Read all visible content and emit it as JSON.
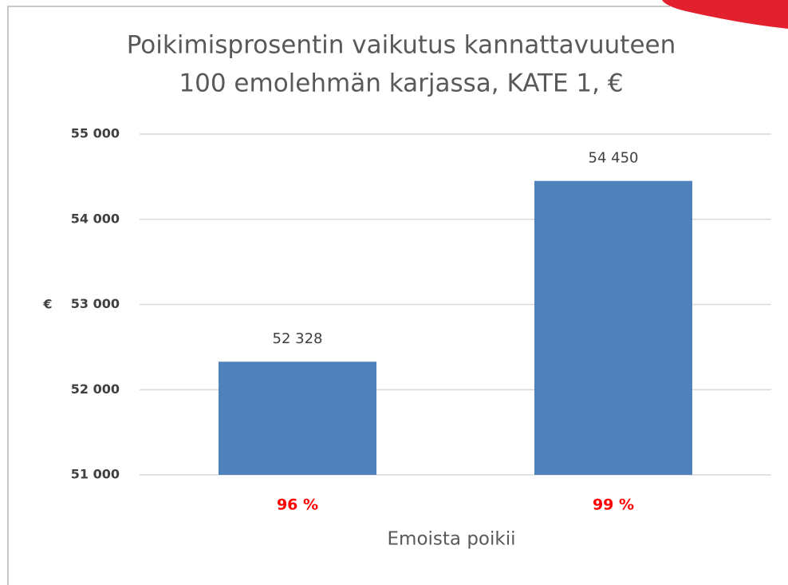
{
  "chart_data": {
    "type": "bar",
    "title": [
      "Poikimisprosentin vaikutus kannattavuuteen",
      "100 emolehmän karjassa, KATE 1, €"
    ],
    "categories": [
      "96 %",
      "99 %"
    ],
    "values": [
      52328,
      54450
    ],
    "value_labels": [
      "52 328",
      "54 450"
    ],
    "color": "#4f81bd",
    "ylabel": "€",
    "xlabel": "Emoista poikii",
    "ylim": [
      51000,
      55000
    ],
    "yticks": [
      {
        "value": 51000,
        "label": "51 000"
      },
      {
        "value": 52000,
        "label": "52 000"
      },
      {
        "value": 53000,
        "label": "53 000"
      },
      {
        "value": 54000,
        "label": "54 000"
      },
      {
        "value": 55000,
        "label": "55 000"
      }
    ],
    "grid": true
  }
}
